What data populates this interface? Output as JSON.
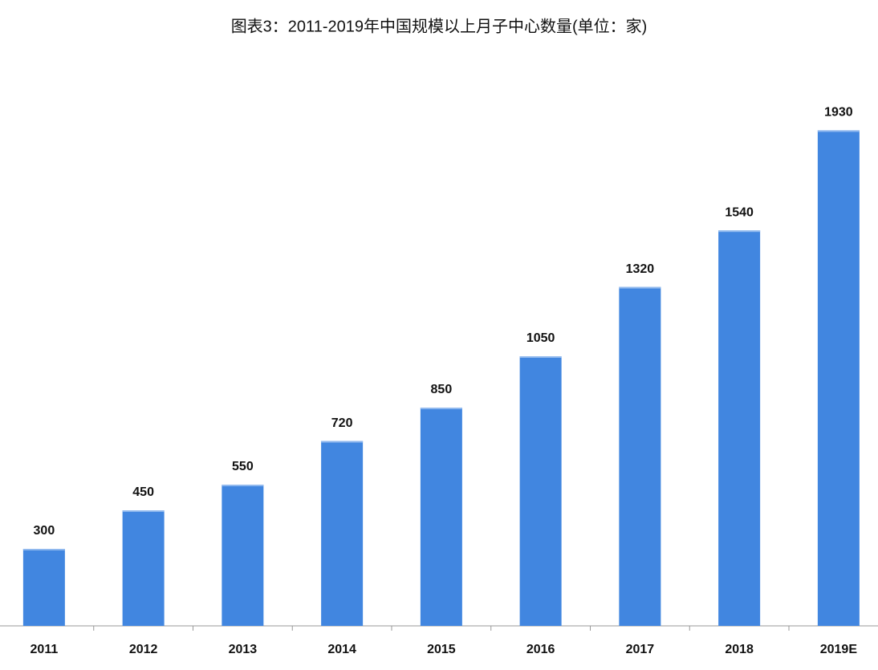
{
  "chart_data": {
    "type": "bar",
    "title": "图表3：2011-2019年中国规模以上月子中心数量(单位：家)",
    "categories": [
      "2011",
      "2012",
      "2013",
      "2014",
      "2015",
      "2016",
      "2017",
      "2018",
      "2019E"
    ],
    "values": [
      300,
      450,
      550,
      720,
      850,
      1050,
      1320,
      1540,
      1930
    ],
    "color": "#4186e0",
    "ylim": [
      0,
      2000
    ]
  }
}
